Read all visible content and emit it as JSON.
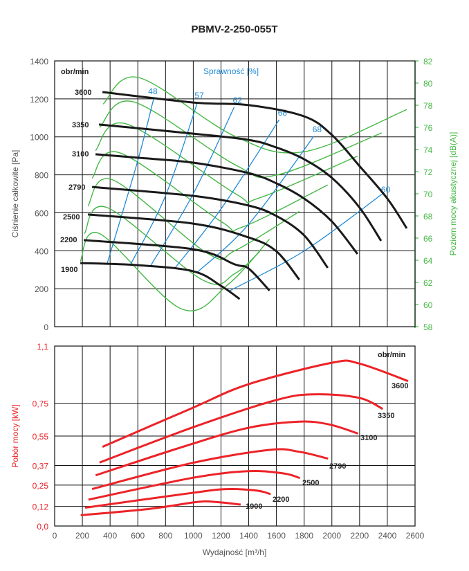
{
  "title": "PBMV-2-250-055T",
  "colors": {
    "pressure": "#1a1a1a",
    "efficiency": "#1f8ad6",
    "noise": "#44b844",
    "power": "#ec2328",
    "grid": "#111111",
    "axis_text": "#555555"
  },
  "chart_data": [
    {
      "type": "line",
      "title": "PBMV-2-250-055T",
      "xlabel": "",
      "ylabel": "Ciśnienie całkowite [Pa]",
      "y2label": "Poziom mocy akustycznej [dB(A)]",
      "xlim": [
        0,
        2600
      ],
      "ylim": [
        0,
        1400
      ],
      "y2lim": [
        58,
        82
      ],
      "grid": true,
      "xticks": [
        0,
        200,
        400,
        600,
        800,
        1000,
        1200,
        1400,
        1600,
        1800,
        2000,
        2200,
        2400,
        2600
      ],
      "yticks": [
        "0",
        "200",
        "400",
        "600",
        "800",
        "1000",
        "1200",
        "1400"
      ],
      "y2ticks": [
        "58",
        "60",
        "62",
        "64",
        "66",
        "68",
        "70",
        "72",
        "74",
        "76",
        "78",
        "80",
        "82"
      ],
      "rpm_header": "obr/min",
      "efficiency_header": "Sprawność [%]",
      "pressure_series": [
        {
          "name": "3600",
          "points": [
            [
              345,
              1236
            ],
            [
              1000,
              1181
            ],
            [
              1400,
              1167
            ],
            [
              1800,
              1108
            ],
            [
              2000,
              1010
            ],
            [
              2200,
              846
            ],
            [
              2400,
              675
            ],
            [
              2540,
              518
            ]
          ]
        },
        {
          "name": "3350",
          "points": [
            [
              320,
              1065
            ],
            [
              1000,
              1017
            ],
            [
              1400,
              984
            ],
            [
              1600,
              944
            ],
            [
              1800,
              882
            ],
            [
              2000,
              784
            ],
            [
              2200,
              627
            ],
            [
              2355,
              452
            ]
          ]
        },
        {
          "name": "3100",
          "points": [
            [
              295,
              908
            ],
            [
              600,
              890
            ],
            [
              1000,
              864
            ],
            [
              1400,
              809
            ],
            [
              1600,
              755
            ],
            [
              1800,
              675
            ],
            [
              2000,
              554
            ],
            [
              2185,
              383
            ]
          ]
        },
        {
          "name": "2790",
          "points": [
            [
              270,
              736
            ],
            [
              1000,
              689
            ],
            [
              1400,
              638
            ],
            [
              1600,
              583
            ],
            [
              1800,
              481
            ],
            [
              1970,
              310
            ]
          ]
        },
        {
          "name": "2500",
          "points": [
            [
              240,
              591
            ],
            [
              1000,
              543
            ],
            [
              1400,
              470
            ],
            [
              1600,
              397
            ],
            [
              1765,
              248
            ]
          ]
        },
        {
          "name": "2200",
          "points": [
            [
              210,
              456
            ],
            [
              1000,
              408
            ],
            [
              1300,
              328
            ],
            [
              1400,
              306
            ],
            [
              1550,
              190
            ]
          ]
        },
        {
          "name": "1900",
          "points": [
            [
              185,
              335
            ],
            [
              600,
              324
            ],
            [
              1000,
              292
            ],
            [
              1200,
              215
            ],
            [
              1335,
              146
            ]
          ]
        }
      ],
      "efficiency_series": [
        {
          "name": "48",
          "points": [
            [
              380,
              335
            ],
            [
              600,
              875
            ],
            [
              715,
              1203
            ]
          ]
        },
        {
          "name": "57",
          "points": [
            [
              545,
              324
            ],
            [
              800,
              690
            ],
            [
              1030,
              1181
            ]
          ]
        },
        {
          "name": "62",
          "points": [
            [
              695,
              324
            ],
            [
              1000,
              700
            ],
            [
              1295,
              1156
            ]
          ]
        },
        {
          "name": "68",
          "points": [
            [
              865,
              306
            ],
            [
              1200,
              620
            ],
            [
              1620,
              1090
            ]
          ]
        },
        {
          "name": "68",
          "points": [
            [
              1020,
              281
            ],
            [
              1400,
              540
            ],
            [
              1870,
              1003
            ]
          ]
        },
        {
          "name": "60",
          "points": [
            [
              1265,
              190
            ],
            [
              1805,
              401
            ],
            [
              2365,
              700
            ]
          ]
        }
      ],
      "noise_series_dBA": [
        {
          "rpm": "3600",
          "points": [
            [
              350,
              78.1
            ],
            [
              605,
              80.5
            ],
            [
              1300,
              75.2
            ],
            [
              1800,
              73.8
            ],
            [
              2540,
              77.6
            ]
          ]
        },
        {
          "rpm": "3350",
          "points": [
            [
              325,
              76.0
            ],
            [
              570,
              78.3
            ],
            [
              1305,
              72.6
            ],
            [
              1605,
              71.7
            ],
            [
              2360,
              75.5
            ]
          ]
        },
        {
          "rpm": "3100",
          "points": [
            [
              295,
              73.9
            ],
            [
              520,
              76.3
            ],
            [
              1305,
              70.0
            ],
            [
              1470,
              69.6
            ],
            [
              2185,
              73.4
            ]
          ]
        },
        {
          "rpm": "2790",
          "points": [
            [
              270,
              71.4
            ],
            [
              470,
              73.7
            ],
            [
              1200,
              67.5
            ],
            [
              1355,
              67.0
            ],
            [
              1970,
              70.8
            ]
          ]
        },
        {
          "rpm": "2500",
          "points": [
            [
              240,
              68.9
            ],
            [
              420,
              71.25
            ],
            [
              1105,
              64.6
            ],
            [
              1305,
              64.9
            ],
            [
              1765,
              68.4
            ]
          ]
        },
        {
          "rpm": "2200",
          "points": [
            [
              215,
              66.4
            ],
            [
              380,
              68.75
            ],
            [
              1070,
              62.2
            ],
            [
              1300,
              62.8
            ],
            [
              1480,
              64.8
            ]
          ]
        },
        {
          "rpm": "1900",
          "points": [
            [
              185,
              63.9
            ],
            [
              325,
              66.4
            ],
            [
              915,
              59.6
            ],
            [
              1250,
              61.8
            ],
            [
              1550,
              65.9
            ]
          ]
        }
      ]
    },
    {
      "type": "line",
      "title": "",
      "xlabel": "Wydajność [m³/h]",
      "ylabel": "Pobór mocy [kW]",
      "xlim": [
        0,
        2600
      ],
      "ylim": [
        0,
        1.1
      ],
      "grid": true,
      "xticks": [
        "0",
        "200",
        "400",
        "600",
        "800",
        "1000",
        "1200",
        "1400",
        "1600",
        "1800",
        "2000",
        "2200",
        "2400",
        "2600"
      ],
      "yticks": [
        {
          "value": 0,
          "label": "0,0"
        },
        {
          "value": 0.12,
          "label": "0,12"
        },
        {
          "value": 0.25,
          "label": "0,25"
        },
        {
          "value": 0.37,
          "label": "0,37"
        },
        {
          "value": 0.55,
          "label": "0,55"
        },
        {
          "value": 0.75,
          "label": "0,75"
        },
        {
          "value": 1.1,
          "label": "1,1"
        }
      ],
      "rpm_header": "obr/min",
      "series": [
        {
          "name": "3600",
          "points": [
            [
              345,
              0.484
            ],
            [
              986,
              0.719
            ],
            [
              1396,
              0.866
            ],
            [
              2000,
              0.998
            ],
            [
              2194,
              0.994
            ],
            [
              2550,
              0.886
            ]
          ]
        },
        {
          "name": "3350",
          "points": [
            [
              324,
              0.388
            ],
            [
              986,
              0.6
            ],
            [
              1590,
              0.768
            ],
            [
              1871,
              0.805
            ],
            [
              2194,
              0.784
            ],
            [
              2367,
              0.716
            ]
          ]
        },
        {
          "name": "3100",
          "points": [
            [
              296,
              0.31
            ],
            [
              943,
              0.489
            ],
            [
              1396,
              0.6
            ],
            [
              1763,
              0.638
            ],
            [
              1979,
              0.621
            ],
            [
              2190,
              0.565
            ]
          ]
        },
        {
          "name": "2790",
          "points": [
            [
              270,
              0.226
            ],
            [
              986,
              0.384
            ],
            [
              1547,
              0.465
            ],
            [
              1763,
              0.454
            ],
            [
              1972,
              0.412
            ]
          ]
        },
        {
          "name": "2500",
          "points": [
            [
              244,
              0.161
            ],
            [
              986,
              0.293
            ],
            [
              1396,
              0.335
            ],
            [
              1655,
              0.321
            ],
            [
              1769,
              0.293
            ]
          ]
        },
        {
          "name": "2200",
          "points": [
            [
              220,
              0.112
            ],
            [
              986,
              0.202
            ],
            [
              1245,
              0.226
            ],
            [
              1461,
              0.216
            ],
            [
              1558,
              0.195
            ]
          ]
        },
        {
          "name": "1900",
          "points": [
            [
              188,
              0.066
            ],
            [
              684,
              0.105
            ],
            [
              1029,
              0.147
            ],
            [
              1159,
              0.147
            ],
            [
              1342,
              0.131
            ]
          ]
        }
      ]
    }
  ]
}
